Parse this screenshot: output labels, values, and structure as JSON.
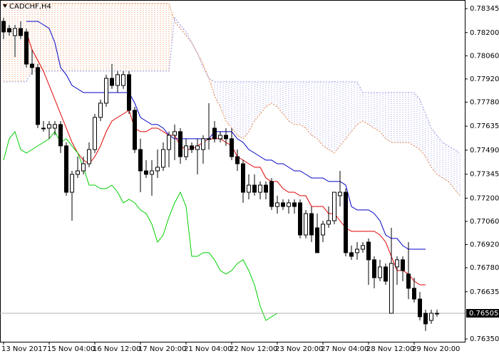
{
  "chart_data": {
    "type": "candlestick",
    "title": "CADCHF,H4",
    "categories": [
      "13 Nov 2017",
      null,
      null,
      null,
      null,
      null,
      null,
      null,
      "15 Nov 04:00",
      null,
      null,
      null,
      null,
      null,
      null,
      null,
      "16 Nov 12:00",
      null,
      null,
      null,
      null,
      null,
      null,
      null,
      "17 Nov 20:00",
      null,
      null,
      null,
      null,
      null,
      null,
      null,
      "21 Nov 04:00",
      null,
      null,
      null,
      null,
      null,
      null,
      null,
      "22 Nov 12:00",
      null,
      null,
      null,
      null,
      null,
      null,
      null,
      "23 Nov 20:00",
      null,
      null,
      null,
      null,
      null,
      null,
      null,
      "27 Nov 04:00",
      null,
      null,
      null,
      null,
      null,
      null,
      null,
      "28 Nov 12:00",
      null,
      null,
      null,
      null,
      null,
      null,
      null,
      "29 Nov 20:00",
      null,
      null,
      null,
      null,
      null,
      null,
      null,
      null
    ],
    "ohlc": {
      "up_color": "#ffffff",
      "down_color": "#000000",
      "outline": "#000000",
      "open": [
        0.78268,
        0.78225,
        0.78182,
        0.78225,
        0.78204,
        0.7801,
        0.77989,
        0.77623,
        0.77623,
        0.77623,
        0.77645,
        0.77516,
        0.77236,
        0.77344,
        0.77365,
        0.77408,
        0.77494,
        0.77688,
        0.77774,
        0.77924,
        0.77881,
        0.77881,
        0.77946,
        0.77731,
        0.77494,
        0.77365,
        0.77344,
        0.77365,
        0.77387,
        0.77494,
        0.7758,
        0.77602,
        0.77451,
        0.77516,
        0.77494,
        0.77494,
        0.77559,
        0.77623,
        0.77559,
        0.7758,
        0.77559,
        0.77451,
        0.77408,
        0.77236,
        0.77279,
        0.77236,
        0.77279,
        0.77301,
        0.7715,
        0.77172,
        0.7715,
        0.77172,
        0.77172,
        0.76978,
        0.77107,
        0.77021,
        0.76978,
        0.77043,
        0.77064,
        0.77215,
        0.77236,
        0.76871,
        0.76871,
        0.76892,
        0.76935,
        0.76828,
        0.7672,
        0.76785,
        0.76505,
        0.76785,
        0.76828,
        0.76742,
        0.76656,
        0.76591,
        0.76505,
        0.76462,
        0.76505
      ],
      "high": [
        0.7829,
        0.78247,
        0.78247,
        0.78268,
        0.78225,
        0.78096,
        0.7801,
        0.77666,
        0.77666,
        0.77666,
        0.77666,
        0.77537,
        0.77365,
        0.77451,
        0.77451,
        0.77537,
        0.77709,
        0.77795,
        0.77946,
        0.7801,
        0.77967,
        0.77967,
        0.77967,
        0.77752,
        0.77559,
        0.7743,
        0.7743,
        0.77494,
        0.77537,
        0.77602,
        0.77645,
        0.77623,
        0.77559,
        0.77537,
        0.77559,
        0.7758,
        0.77774,
        0.77666,
        0.77602,
        0.77623,
        0.77623,
        0.77494,
        0.7743,
        0.77344,
        0.77344,
        0.77301,
        0.77301,
        0.77322,
        0.77215,
        0.77193,
        0.77193,
        0.77193,
        0.77193,
        0.77129,
        0.7715,
        0.77107,
        0.77064,
        0.7715,
        0.77236,
        0.77365,
        0.77258,
        0.76914,
        0.76935,
        0.76935,
        0.76957,
        0.76849,
        0.76828,
        0.76806,
        0.77021,
        0.76849,
        0.76849,
        0.76935,
        0.7672,
        0.76634,
        0.76527,
        0.76527,
        0.76527
      ],
      "low": [
        0.78161,
        0.78182,
        0.78053,
        0.78161,
        0.77989,
        0.77946,
        0.77623,
        0.77602,
        0.77559,
        0.7758,
        0.77473,
        0.77215,
        0.77064,
        0.77322,
        0.77344,
        0.77387,
        0.77473,
        0.77666,
        0.77752,
        0.7786,
        0.77838,
        0.7786,
        0.77709,
        0.77473,
        0.77236,
        0.77322,
        0.77215,
        0.77322,
        0.77365,
        0.77387,
        0.7743,
        0.77408,
        0.7743,
        0.77473,
        0.77344,
        0.77408,
        0.77494,
        0.77537,
        0.77537,
        0.77516,
        0.7743,
        0.77365,
        0.77172,
        0.77193,
        0.77215,
        0.77193,
        0.77193,
        0.77129,
        0.77107,
        0.77129,
        0.77107,
        0.77107,
        0.76957,
        0.76957,
        0.76935,
        0.76871,
        0.76935,
        0.77021,
        0.77043,
        0.7715,
        0.76849,
        0.76828,
        0.76828,
        0.76871,
        0.76677,
        0.76656,
        0.76699,
        0.76677,
        0.76505,
        0.76677,
        0.76699,
        0.76591,
        0.7657,
        0.76462,
        0.76398,
        0.76441,
        0.76484
      ],
      "close": [
        0.78204,
        0.78204,
        0.78225,
        0.78182,
        0.7801,
        0.77989,
        0.77645,
        0.77623,
        0.77645,
        0.77645,
        0.77516,
        0.77236,
        0.77344,
        0.77365,
        0.77408,
        0.77494,
        0.77688,
        0.77774,
        0.77924,
        0.77881,
        0.77946,
        0.77946,
        0.77731,
        0.77494,
        0.77365,
        0.77344,
        0.77365,
        0.77387,
        0.77494,
        0.7758,
        0.77602,
        0.77451,
        0.77516,
        0.77494,
        0.77516,
        0.77559,
        0.77559,
        0.77559,
        0.7758,
        0.77559,
        0.77451,
        0.77408,
        0.77236,
        0.77279,
        0.77236,
        0.77279,
        0.77236,
        0.7715,
        0.77172,
        0.7715,
        0.77172,
        0.7715,
        0.76978,
        0.77107,
        0.76978,
        0.76871,
        0.77043,
        0.77064,
        0.77236,
        0.77236,
        0.76871,
        0.76849,
        0.76892,
        0.76914,
        0.76828,
        0.7672,
        0.76785,
        0.76699,
        0.76806,
        0.76828,
        0.76763,
        0.76656,
        0.76591,
        0.76484,
        0.76441,
        0.76505,
        0.76505
      ]
    },
    "lines": [
      {
        "color": "#e00000",
        "values": [
          null,
          null,
          null,
          null,
          0.78204,
          0.78096,
          0.78032,
          0.77967,
          0.77881,
          0.77795,
          0.77709,
          0.77623,
          0.77537,
          0.77473,
          0.7743,
          0.77408,
          0.77451,
          0.77516,
          0.77602,
          0.77666,
          0.77688,
          0.77709,
          0.77731,
          0.77623,
          0.77602,
          0.77602,
          0.77623,
          0.77623,
          0.77602,
          0.7758,
          0.7758,
          0.77516,
          0.77494,
          0.77494,
          0.77516,
          0.77537,
          0.77559,
          0.77559,
          0.77559,
          0.77537,
          0.77516,
          0.77451,
          0.7743,
          0.77408,
          0.77387,
          0.77387,
          0.77322,
          0.77301,
          0.77301,
          0.77258,
          0.77236,
          0.77236,
          0.77215,
          0.77215,
          0.7715,
          0.7715,
          0.7715,
          0.77107,
          0.77107,
          0.77064,
          0.77021,
          0.77,
          0.77,
          0.77,
          0.77,
          0.77,
          0.76978,
          0.76935,
          0.76849,
          0.76763,
          0.76763,
          0.76742,
          0.76699,
          0.76677,
          0.76677,
          null,
          null,
          null,
          null,
          null,
          null
        ]
      },
      {
        "color": "#0000c8",
        "values": [
          null,
          null,
          null,
          null,
          0.78268,
          0.78268,
          0.78268,
          0.78247,
          0.78225,
          0.78139,
          0.77989,
          0.77946,
          0.77881,
          0.7786,
          0.77838,
          0.77838,
          0.77838,
          0.77838,
          0.77838,
          0.77838,
          0.77838,
          0.77838,
          0.77838,
          0.77774,
          0.77688,
          0.77666,
          0.77645,
          0.77645,
          0.77623,
          0.7758,
          0.77559,
          0.77559,
          0.77559,
          0.77559,
          0.77559,
          0.77559,
          0.77559,
          0.77602,
          0.77602,
          0.77602,
          0.77602,
          0.77559,
          0.77537,
          0.77494,
          0.77473,
          0.77451,
          0.7743,
          0.7743,
          0.77408,
          0.77408,
          0.77387,
          0.77365,
          0.77365,
          0.77344,
          0.77322,
          0.77322,
          0.77322,
          0.77301,
          0.77301,
          0.77301,
          0.77279,
          0.7715,
          0.77129,
          0.77129,
          0.77129,
          0.77107,
          0.77064,
          0.76978,
          0.76957,
          0.76957,
          0.76914,
          0.76892,
          0.76892,
          0.76892,
          0.76892,
          null,
          null,
          null,
          null,
          null,
          null
        ]
      },
      {
        "color": "#00d000",
        "values": [
          0.7743,
          0.77559,
          0.77602,
          0.77494,
          0.77473,
          0.77494,
          0.77516,
          0.77537,
          0.77559,
          0.77602,
          0.77537,
          0.77559,
          0.77516,
          0.77473,
          0.77387,
          0.77279,
          0.77279,
          0.77258,
          0.77258,
          0.77279,
          0.77236,
          0.77172,
          0.77193,
          0.77172,
          0.77129,
          0.77107,
          0.77043,
          0.76935,
          0.76978,
          0.77086,
          0.77172,
          0.77236,
          0.7715,
          0.76849,
          0.76849,
          0.76871,
          0.76871,
          0.76828,
          0.76763,
          0.76742,
          0.76763,
          0.76806,
          0.76828,
          0.76763,
          0.76677,
          0.76548,
          0.76462,
          0.76484,
          0.76505,
          0.76505,
          null,
          null,
          null,
          null,
          null,
          null,
          null,
          null,
          null,
          null,
          null,
          null,
          null,
          null,
          null,
          null,
          null,
          null,
          null,
          null,
          null,
          null,
          null,
          null,
          null,
          null,
          null,
          null,
          null,
          null,
          null
        ]
      }
    ],
    "cloud": {
      "a": {
        "color": "#e8864a",
        "values": [
          0.78376,
          0.78376,
          0.78376,
          0.78376,
          0.78376,
          0.78376,
          0.78376,
          0.78376,
          0.78376,
          0.78376,
          0.78376,
          0.78376,
          0.78376,
          0.78376,
          0.78376,
          0.78376,
          0.78376,
          0.78376,
          0.78376,
          0.78376,
          0.78376,
          0.78376,
          0.78376,
          0.78376,
          0.78376,
          0.78376,
          0.78376,
          0.78376,
          0.78376,
          0.78376,
          0.78268,
          0.78225,
          0.78182,
          0.78139,
          0.78075,
          0.7801,
          0.77924,
          0.77817,
          0.77752,
          0.77666,
          0.77623,
          0.7758,
          0.77559,
          0.77602,
          0.77666,
          0.77709,
          0.77752,
          0.77774,
          0.77752,
          0.77709,
          0.77666,
          0.77645,
          0.77645,
          0.77623,
          0.7758,
          0.77559,
          0.77516,
          0.77494,
          0.77473,
          0.77516,
          0.77559,
          0.77602,
          0.77645,
          0.77666,
          0.77645,
          0.77623,
          0.77602,
          0.77559,
          0.77537,
          0.77537,
          0.77537,
          0.77537,
          0.77516,
          0.77494,
          0.77451,
          0.77387,
          0.77344,
          0.77322,
          0.77301,
          0.77258,
          0.77215
        ]
      },
      "b": {
        "color": "#9a9ae6",
        "values": [
          0.77903,
          0.77903,
          0.77903,
          0.77903,
          0.77903,
          0.77967,
          0.77967,
          0.77967,
          0.77967,
          0.77967,
          0.77967,
          0.77967,
          0.77967,
          0.77967,
          0.77967,
          0.77967,
          0.77967,
          0.77967,
          0.77967,
          0.77967,
          0.77967,
          0.77967,
          0.77967,
          0.77967,
          0.77967,
          0.77967,
          0.77967,
          0.77967,
          0.77967,
          0.77967,
          0.7829,
          0.78247,
          0.78204,
          0.78139,
          0.78075,
          0.77989,
          0.77924,
          0.77903,
          0.77903,
          0.77903,
          0.77903,
          0.77903,
          0.77903,
          0.77903,
          0.77903,
          0.77903,
          0.77903,
          0.77903,
          0.77903,
          0.77903,
          0.77903,
          0.77903,
          0.77903,
          0.77903,
          0.77903,
          0.77903,
          0.77903,
          0.77903,
          0.77903,
          0.77903,
          0.77903,
          0.77903,
          0.77903,
          0.77838,
          0.77838,
          0.77838,
          0.77838,
          0.77838,
          0.77838,
          0.77838,
          0.77838,
          0.77838,
          0.77838,
          0.77795,
          0.77709,
          0.77623,
          0.7758,
          0.77537,
          0.77516,
          0.77494,
          0.77473
        ]
      }
    },
    "last_price": 0.76505,
    "ylim": [
      0.76333,
      0.78397
    ],
    "yticks": [
      0.78345,
      {
        "value": 0.782,
        "label": "0.78200"
      },
      {
        "value": 0.7806,
        "label": "0.78060"
      },
      {
        "value": 0.7792,
        "label": "0.77920"
      },
      {
        "value": 0.7778,
        "label": "0.77780"
      },
      0.77635,
      {
        "value": 0.7749,
        "label": "0.77490"
      },
      0.77345,
      {
        "value": 0.772,
        "label": "0.77200"
      },
      {
        "value": 0.7706,
        "label": "0.77060"
      },
      {
        "value": 0.7692,
        "label": "0.76920"
      },
      {
        "value": 0.7678,
        "label": "0.76780"
      },
      0.76635,
      {
        "value": 0.7635,
        "label": "0.76350"
      }
    ],
    "grid": false
  }
}
